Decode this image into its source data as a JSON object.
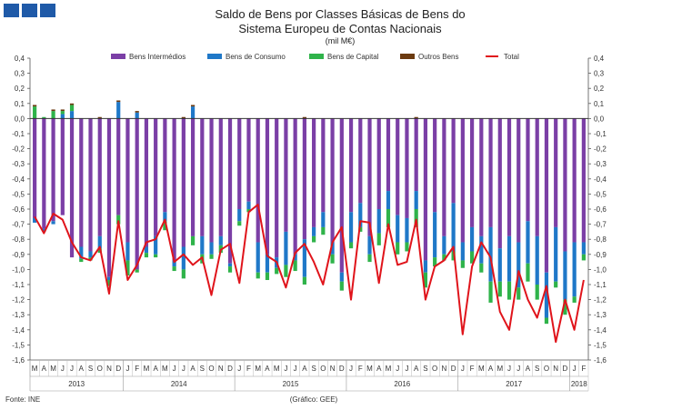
{
  "header": {
    "title_line1": "Saldo de Bens por Classes Básicas de Bens do",
    "title_line2": "Sistema Europeu de Contas Nacionais",
    "unit": "(mil M€)"
  },
  "footer": {
    "source": "Fonte: INE",
    "credit": "(Gráfico: GEE)"
  },
  "colors": {
    "intermedios": "#7b3fa6",
    "consumo": "#1f78c8",
    "capital": "#2fb34a",
    "outros": "#6b3a10",
    "total": "#e0141b",
    "logo": "#1f5aa8"
  },
  "chart_data": {
    "type": "bar",
    "stacked": true,
    "yticks": [
      "0,4",
      "0,3",
      "0,2",
      "0,1",
      "0,0",
      "-0,1",
      "-0,2",
      "-0,3",
      "-0,4",
      "-0,5",
      "-0,6",
      "-0,7",
      "-0,8",
      "-0,9",
      "-1,0",
      "-1,1",
      "-1,2",
      "-1,3",
      "-1,4",
      "-1,5",
      "-1,6"
    ],
    "ylim": [
      -1.6,
      0.4
    ],
    "legend_position": "top",
    "categories": [
      "M",
      "A",
      "M",
      "J",
      "J",
      "A",
      "S",
      "O",
      "N",
      "D",
      "J",
      "F",
      "M",
      "A",
      "M",
      "J",
      "J",
      "A",
      "S",
      "O",
      "N",
      "D",
      "J",
      "F",
      "M",
      "A",
      "M",
      "J",
      "J",
      "A",
      "S",
      "O",
      "N",
      "D",
      "J",
      "F",
      "M",
      "A",
      "M",
      "J",
      "J",
      "A",
      "S",
      "O",
      "N",
      "D",
      "J",
      "F",
      "M",
      "A",
      "M",
      "J",
      "J",
      "A",
      "S",
      "O",
      "N",
      "D",
      "J",
      "F"
    ],
    "year_labels": [
      {
        "label": "2013",
        "start": 0,
        "end": 10
      },
      {
        "label": "2014",
        "start": 10,
        "end": 22
      },
      {
        "label": "2015",
        "start": 22,
        "end": 34
      },
      {
        "label": "2016",
        "start": 34,
        "end": 46
      },
      {
        "label": "2017",
        "start": 46,
        "end": 58
      },
      {
        "label": "2018",
        "start": 58,
        "end": 60
      }
    ],
    "series": [
      {
        "name": "Bens Intermédios",
        "type": "bar",
        "values": [
          -0.66,
          -0.73,
          -0.68,
          -0.64,
          -0.92,
          -0.85,
          -0.88,
          -0.78,
          -1.05,
          -0.64,
          -0.82,
          -1.0,
          -0.85,
          -0.78,
          -0.62,
          -0.94,
          -0.85,
          -0.78,
          -0.78,
          -0.82,
          -0.78,
          -0.96,
          -0.6,
          -0.55,
          -0.82,
          -0.9,
          -0.92,
          -0.75,
          -0.9,
          -0.8,
          -0.72,
          -0.62,
          -0.82,
          -1.02,
          -0.62,
          -0.56,
          -0.78,
          -0.6,
          -0.48,
          -0.64,
          -0.66,
          -0.48,
          -0.94,
          -0.62,
          -0.78,
          -0.56,
          -0.82,
          -0.72,
          -0.78,
          -0.72,
          -0.86,
          -0.78,
          -0.82,
          -0.68,
          -0.78,
          -1.02,
          -0.72,
          -0.88,
          -0.82,
          -0.82
        ]
      },
      {
        "name": "Bens de Consumo",
        "type": "bar",
        "values": [
          -0.03,
          -0.02,
          -0.02,
          0.03,
          0.05,
          -0.08,
          -0.04,
          -0.08,
          -0.02,
          0.11,
          -0.12,
          0.04,
          -0.04,
          -0.12,
          -0.06,
          -0.04,
          -0.15,
          0.08,
          -0.12,
          -0.08,
          -0.06,
          -0.02,
          -0.08,
          -0.05,
          -0.2,
          -0.12,
          -0.07,
          -0.22,
          -0.04,
          -0.25,
          -0.06,
          -0.1,
          -0.08,
          -0.06,
          -0.2,
          -0.16,
          -0.12,
          -0.16,
          -0.12,
          -0.18,
          -0.16,
          -0.12,
          -0.08,
          -0.3,
          -0.12,
          -0.32,
          -0.12,
          -0.16,
          -0.18,
          -0.36,
          -0.22,
          -0.3,
          -0.3,
          -0.28,
          -0.32,
          -0.3,
          -0.36,
          -0.32,
          -0.36,
          -0.08
        ]
      },
      {
        "name": "Bens de Capital",
        "type": "bar",
        "values": [
          0.08,
          0.01,
          0.05,
          0.02,
          0.04,
          -0.02,
          -0.02,
          -0.03,
          -0.04,
          -0.06,
          -0.1,
          -0.02,
          -0.03,
          -0.02,
          -0.06,
          -0.03,
          -0.06,
          -0.06,
          -0.06,
          -0.03,
          -0.05,
          -0.04,
          -0.03,
          -0.02,
          -0.04,
          -0.05,
          -0.04,
          -0.08,
          -0.07,
          -0.05,
          -0.04,
          -0.05,
          -0.06,
          -0.06,
          -0.04,
          -0.03,
          -0.05,
          -0.08,
          -0.12,
          -0.08,
          -0.06,
          -0.12,
          -0.1,
          -0.06,
          -0.04,
          -0.06,
          -0.05,
          -0.08,
          -0.06,
          -0.14,
          -0.1,
          -0.12,
          -0.08,
          -0.12,
          -0.1,
          -0.04,
          -0.04,
          -0.1,
          -0.04,
          -0.04
        ]
      },
      {
        "name": "Outros Bens",
        "type": "bar",
        "values": [
          0.01,
          0.0,
          0.01,
          0.01,
          0.01,
          0.0,
          0.0,
          0.01,
          0.0,
          0.01,
          0.0,
          0.01,
          0.0,
          0.0,
          0.0,
          0.0,
          0.01,
          0.01,
          0.0,
          0.0,
          0.0,
          0.0,
          0.0,
          0.0,
          0.0,
          0.0,
          0.0,
          0.0,
          0.0,
          0.01,
          0.0,
          0.0,
          0.0,
          0.0,
          0.0,
          0.0,
          0.0,
          0.0,
          0.0,
          0.0,
          0.0,
          0.01,
          0.0,
          0.0,
          0.0,
          0.0,
          0.0,
          0.0,
          0.0,
          0.0,
          0.0,
          0.0,
          0.0,
          0.0,
          0.0,
          0.0,
          0.0,
          0.0,
          0.0,
          0.0
        ]
      },
      {
        "name": "Total",
        "type": "line",
        "values": [
          -0.65,
          -0.76,
          -0.63,
          -0.67,
          -0.82,
          -0.92,
          -0.94,
          -0.85,
          -1.16,
          -0.68,
          -1.07,
          -0.97,
          -0.82,
          -0.8,
          -0.67,
          -0.95,
          -0.9,
          -0.97,
          -0.92,
          -1.17,
          -0.87,
          -0.83,
          -1.09,
          -0.62,
          -0.57,
          -0.91,
          -0.95,
          -1.12,
          -0.89,
          -0.83,
          -0.95,
          -1.1,
          -0.82,
          -0.72,
          -1.2,
          -0.68,
          -0.69,
          -1.09,
          -0.7,
          -0.97,
          -0.95,
          -0.67,
          -1.2,
          -0.98,
          -0.94,
          -0.85,
          -1.43,
          -0.98,
          -0.82,
          -0.92,
          -1.28,
          -1.4,
          -1.01,
          -1.2,
          -1.32,
          -1.11,
          -1.48,
          -1.2,
          -1.4,
          -1.07
        ]
      }
    ]
  }
}
